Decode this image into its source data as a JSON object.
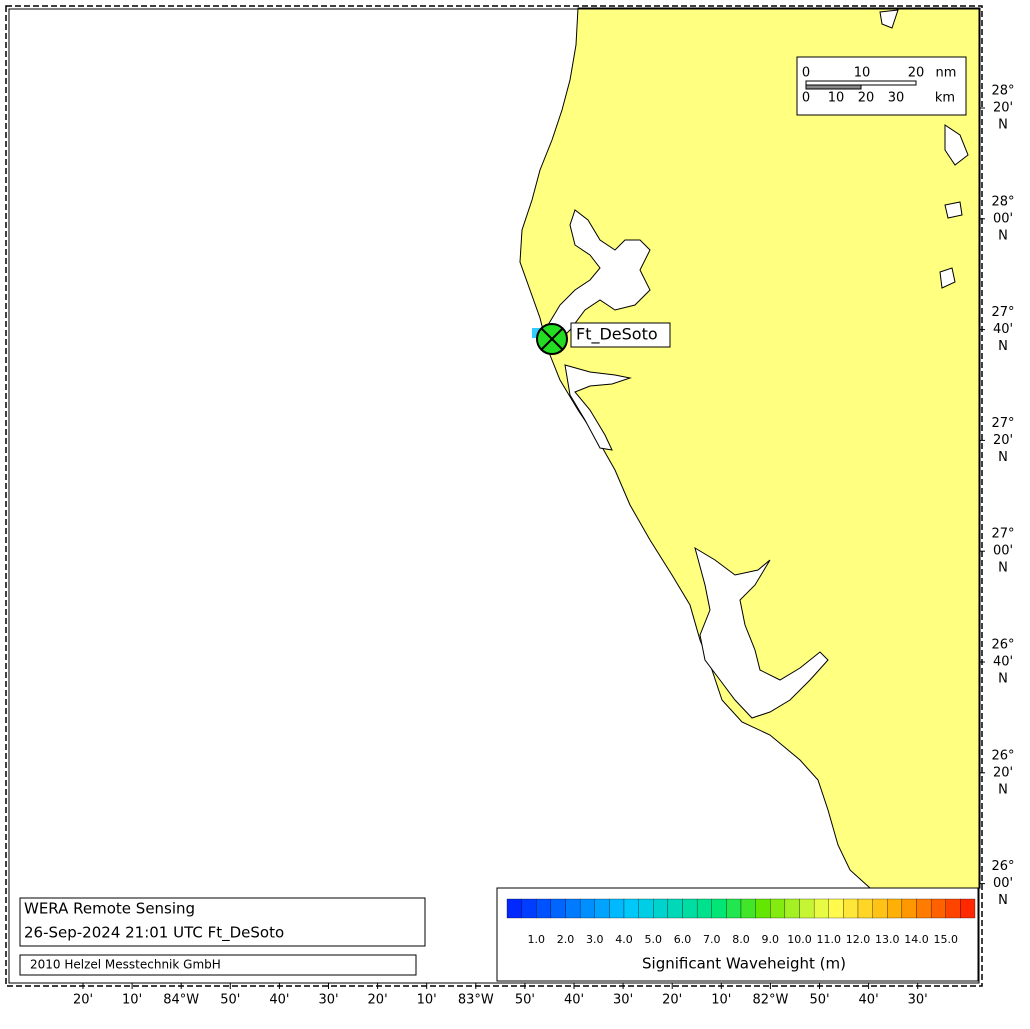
{
  "map": {
    "station": "Ft_DeSoto",
    "scale_bar": {
      "nm": [
        "0",
        "10",
        "20",
        "nm"
      ],
      "km": [
        "0",
        "10",
        "20",
        "30",
        "km"
      ]
    },
    "lat_labels": [
      [
        "28°",
        "20'",
        "N"
      ],
      [
        "28°",
        "00'",
        "N"
      ],
      [
        "27°",
        "40'",
        "N"
      ],
      [
        "27°",
        "20'",
        "N"
      ],
      [
        "27°",
        "00'",
        "N"
      ],
      [
        "26°",
        "40'",
        "N"
      ],
      [
        "26°",
        "20'",
        "N"
      ],
      [
        "26°",
        "00'",
        "N"
      ]
    ],
    "lon_labels": [
      "20'",
      "10'",
      "84°W",
      "50'",
      "40'",
      "30'",
      "20'",
      "10'",
      "83°W",
      "50'",
      "40'",
      "30'",
      "20'",
      "10'",
      "82°W",
      "50'",
      "40'",
      "30'"
    ]
  },
  "info": {
    "title": "WERA Remote Sensing",
    "timestamp": "26-Sep-2024 21:01 UTC  Ft_DeSoto",
    "credit": "2010 Helzel Messtechnik GmbH"
  },
  "colorbar": {
    "labels": [
      "1.0",
      "2.0",
      "3.0",
      "4.0",
      "5.0",
      "6.0",
      "7.0",
      "8.0",
      "9.0",
      "10.0",
      "11.0",
      "12.0",
      "13.0",
      "14.0",
      "15.0"
    ],
    "title": "Significant Waveheight (m)"
  }
}
